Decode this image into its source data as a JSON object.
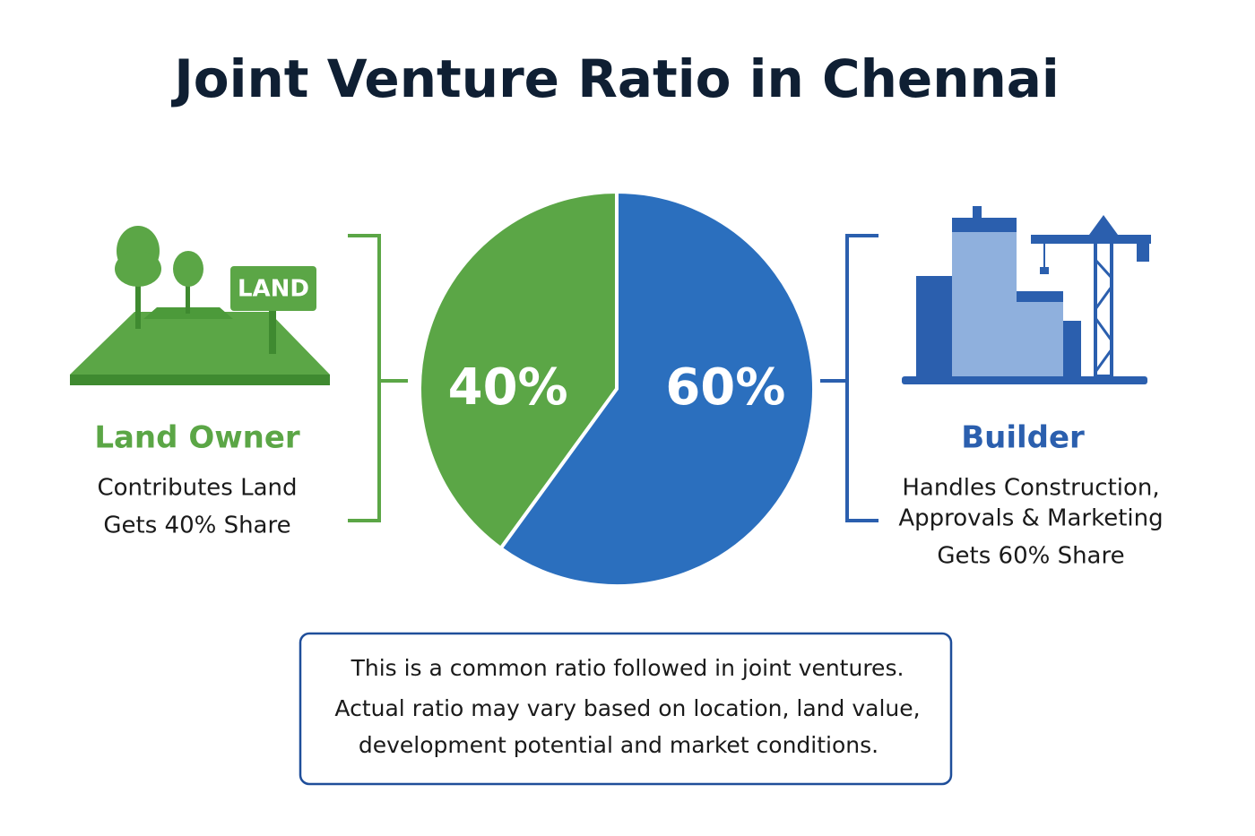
{
  "chart_data": {
    "type": "pie",
    "title": "Joint Venture Ratio in Chennai",
    "categories": [
      "Land Owner",
      "Builder"
    ],
    "values": [
      40,
      60
    ],
    "value_labels": [
      "40%",
      "60%"
    ],
    "colors": [
      "#5ba646",
      "#2b6fbe"
    ],
    "descriptions": [
      [
        "Contributes Land",
        "Gets 40% Share"
      ],
      [
        "Handles Construction,",
        "Approvals & Marketing",
        "Gets 60% Share"
      ]
    ],
    "sign_text": "LAND",
    "note": [
      "This is a common ratio followed in joint ventures.",
      "Actual ratio may vary based on location, land value,",
      "development potential and market conditions."
    ]
  }
}
